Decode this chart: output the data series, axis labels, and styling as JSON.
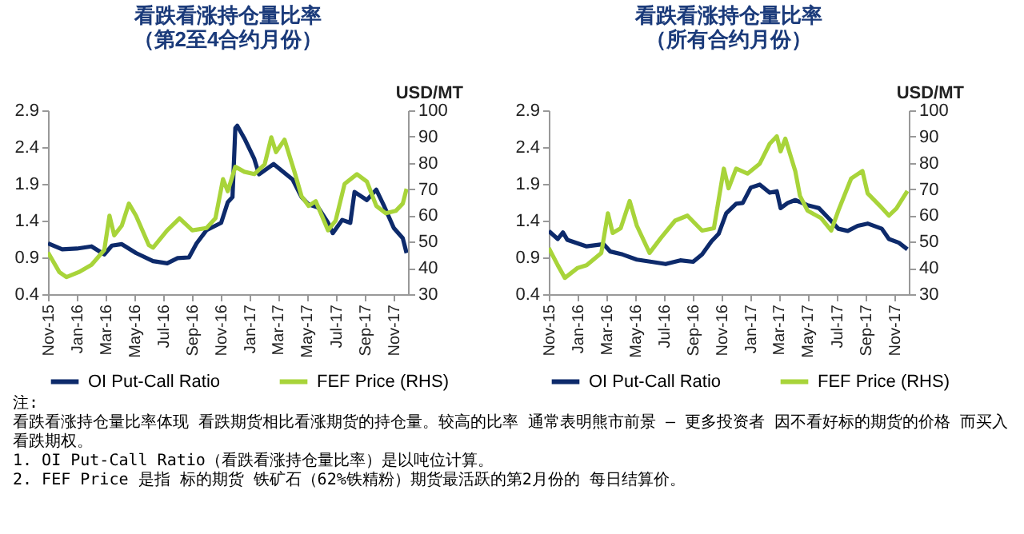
{
  "chart_data": [
    {
      "type": "line",
      "title": "看跌看涨持仓量比率（第2至4合约月份）",
      "y2label": "USD/MT",
      "legend": "bottom",
      "grid": false,
      "xlim": [
        "2015-11-01",
        "2017-12-01"
      ],
      "xticks": [
        {
          "value": "2015-11-01",
          "label": "Nov-15"
        },
        {
          "value": "2016-01-01",
          "label": "Jan-16"
        },
        {
          "value": "2016-03-01",
          "label": "Mar-16"
        },
        {
          "value": "2016-05-01",
          "label": "May-16"
        },
        {
          "value": "2016-07-01",
          "label": "Jul-16"
        },
        {
          "value": "2016-09-01",
          "label": "Sep-16"
        },
        {
          "value": "2016-11-01",
          "label": "Nov-16"
        },
        {
          "value": "2017-01-01",
          "label": "Jan-17"
        },
        {
          "value": "2017-03-01",
          "label": "Mar-17"
        },
        {
          "value": "2017-05-01",
          "label": "May-17"
        },
        {
          "value": "2017-07-01",
          "label": "Jul-17"
        },
        {
          "value": "2017-09-01",
          "label": "Sep-17"
        },
        {
          "value": "2017-11-01",
          "label": "Nov-17"
        }
      ],
      "ylim": [
        0.4,
        2.9
      ],
      "yticks": [
        0.4,
        0.9,
        1.4,
        1.9,
        2.4,
        2.9
      ],
      "y2lim": [
        30,
        100
      ],
      "y2ticks": [
        30,
        40,
        50,
        60,
        70,
        80,
        90,
        100
      ],
      "series": [
        {
          "name": "OI Put-Call Ratio",
          "color": "#0d2a6b",
          "x": [
            "2015-11-01",
            "2015-12-01",
            "2016-01-01",
            "2016-02-01",
            "2016-02-28",
            "2016-03-15",
            "2016-04-05",
            "2016-05-05",
            "2016-06-10",
            "2016-07-10",
            "2016-08-01",
            "2016-08-25",
            "2016-09-10",
            "2016-10-01",
            "2016-11-01",
            "2016-11-15",
            "2016-11-25",
            "2016-12-01",
            "2016-12-05",
            "2016-12-20",
            "2017-01-10",
            "2017-01-20",
            "2017-02-20",
            "2017-03-05",
            "2017-04-01",
            "2017-04-20",
            "2017-05-05",
            "2017-05-25",
            "2017-06-15",
            "2017-06-25",
            "2017-07-15",
            "2017-08-01",
            "2017-08-10",
            "2017-09-05",
            "2017-09-25",
            "2017-10-10",
            "2017-11-01",
            "2017-11-20",
            "2017-11-28"
          ],
          "values": [
            1.09,
            1.01,
            1.02,
            1.05,
            0.94,
            1.06,
            1.08,
            0.96,
            0.85,
            0.82,
            0.89,
            0.9,
            1.09,
            1.27,
            1.37,
            1.65,
            1.72,
            2.66,
            2.69,
            2.52,
            2.24,
            2.03,
            2.17,
            2.1,
            1.96,
            1.72,
            1.62,
            1.58,
            1.37,
            1.23,
            1.41,
            1.37,
            1.79,
            1.68,
            1.82,
            1.62,
            1.3,
            1.16,
            0.96
          ]
        },
        {
          "name": "FEF Price (RHS)",
          "color": "#a8d43a",
          "axis": "y2",
          "x": [
            "2015-11-01",
            "2015-11-25",
            "2015-12-10",
            "2016-01-05",
            "2016-02-01",
            "2016-02-28",
            "2016-03-10",
            "2016-03-20",
            "2016-04-05",
            "2016-04-20",
            "2016-05-05",
            "2016-06-01",
            "2016-06-10",
            "2016-07-10",
            "2016-08-05",
            "2016-09-01",
            "2016-10-01",
            "2016-10-20",
            "2016-11-05",
            "2016-11-15",
            "2016-12-01",
            "2016-12-20",
            "2017-01-10",
            "2017-02-01",
            "2017-02-15",
            "2017-02-25",
            "2017-03-15",
            "2017-04-05",
            "2017-04-20",
            "2017-05-05",
            "2017-05-20",
            "2017-06-15",
            "2017-07-01",
            "2017-07-20",
            "2017-08-15",
            "2017-09-05",
            "2017-09-25",
            "2017-10-15",
            "2017-11-05",
            "2017-11-20",
            "2017-11-28"
          ],
          "values": [
            45.9,
            38.4,
            36.5,
            38.4,
            41.2,
            46.8,
            59.9,
            52.4,
            56.1,
            64.5,
            59.9,
            48.7,
            47.7,
            54.3,
            58.9,
            54.3,
            55.2,
            58.9,
            73.8,
            69.2,
            78.5,
            76.6,
            75.7,
            79.4,
            89.7,
            84.1,
            88.8,
            76.6,
            67.3,
            63.6,
            65.4,
            54.3,
            58,
            72,
            75.7,
            72.9,
            63.6,
            60.8,
            61.7,
            64.5,
            70.1
          ]
        }
      ]
    },
    {
      "type": "line",
      "title": "看跌看涨持仓量比率（所有合约月份）",
      "y2label": "USD/MT",
      "legend": "bottom",
      "grid": false,
      "xlim": [
        "2015-11-01",
        "2017-12-01"
      ],
      "xticks": [
        {
          "value": "2015-11-01",
          "label": "Nov-15"
        },
        {
          "value": "2016-01-01",
          "label": "Jan-16"
        },
        {
          "value": "2016-03-01",
          "label": "Mar-16"
        },
        {
          "value": "2016-05-01",
          "label": "May-16"
        },
        {
          "value": "2016-07-01",
          "label": "Jul-16"
        },
        {
          "value": "2016-09-01",
          "label": "Sep-16"
        },
        {
          "value": "2016-11-01",
          "label": "Nov-16"
        },
        {
          "value": "2017-01-01",
          "label": "Jan-17"
        },
        {
          "value": "2017-03-01",
          "label": "Mar-17"
        },
        {
          "value": "2017-05-01",
          "label": "May-17"
        },
        {
          "value": "2017-07-01",
          "label": "Jul-17"
        },
        {
          "value": "2017-09-01",
          "label": "Sep-17"
        },
        {
          "value": "2017-11-01",
          "label": "Nov-17"
        }
      ],
      "ylim": [
        0.4,
        2.9
      ],
      "yticks": [
        0.4,
        0.9,
        1.4,
        1.9,
        2.4,
        2.9
      ],
      "y2lim": [
        30,
        100
      ],
      "y2ticks": [
        30,
        40,
        50,
        60,
        70,
        80,
        90,
        100
      ],
      "annotations": [
        "注:",
        "看跌看涨持仓量比率体现 看跌期货相比看涨期货的持仓量。较高的比率 通常表明熊市前景 – 更多投资者 因不看好标的期货的价格 而买入看跌期权。",
        "1.  OI Put-Call Ratio（看跌看涨持仓量比率）是以吨位计算。",
        "2.  FEF Price 是指 标的期货 铁矿石（62%铁精粉）期货最活跃的第2月份的 每日结算价。"
      ],
      "series": [
        {
          "name": "OI Put-Call Ratio",
          "color": "#0d2a6b",
          "x": [
            "2015-11-01",
            "2015-11-20",
            "2015-12-01",
            "2015-12-10",
            "2016-01-20",
            "2016-02-25",
            "2016-03-10",
            "2016-04-05",
            "2016-05-05",
            "2016-06-05",
            "2016-07-05",
            "2016-08-05",
            "2016-09-01",
            "2016-09-20",
            "2016-10-10",
            "2016-10-25",
            "2016-11-10",
            "2016-12-01",
            "2016-12-15",
            "2017-01-01",
            "2017-01-20",
            "2017-02-10",
            "2017-02-25",
            "2017-03-05",
            "2017-03-20",
            "2017-04-05",
            "2017-05-01",
            "2017-05-25",
            "2017-06-15",
            "2017-07-05",
            "2017-07-25",
            "2017-08-15",
            "2017-09-05",
            "2017-10-05",
            "2017-10-20",
            "2017-11-10",
            "2017-11-28"
          ],
          "values": [
            1.26,
            1.15,
            1.24,
            1.14,
            1.05,
            1.08,
            0.98,
            0.94,
            0.87,
            0.84,
            0.81,
            0.86,
            0.84,
            0.94,
            1.12,
            1.22,
            1.5,
            1.63,
            1.64,
            1.85,
            1.89,
            1.78,
            1.8,
            1.57,
            1.64,
            1.68,
            1.61,
            1.57,
            1.43,
            1.29,
            1.26,
            1.33,
            1.36,
            1.29,
            1.15,
            1.1,
            1.01
          ]
        },
        {
          "name": "FEF Price (RHS)",
          "color": "#a8d43a",
          "axis": "y2",
          "x": [
            "2015-11-01",
            "2015-11-20",
            "2015-12-05",
            "2016-01-01",
            "2016-01-20",
            "2016-02-20",
            "2016-03-05",
            "2016-03-15",
            "2016-04-01",
            "2016-04-20",
            "2016-05-05",
            "2016-06-01",
            "2016-06-25",
            "2016-07-25",
            "2016-08-20",
            "2016-09-20",
            "2016-10-15",
            "2016-11-05",
            "2016-11-15",
            "2016-12-01",
            "2016-12-25",
            "2017-01-20",
            "2017-02-10",
            "2017-02-25",
            "2017-03-05",
            "2017-03-15",
            "2017-04-05",
            "2017-04-15",
            "2017-05-01",
            "2017-05-30",
            "2017-06-20",
            "2017-07-05",
            "2017-08-01",
            "2017-08-25",
            "2017-09-05",
            "2017-10-01",
            "2017-10-20",
            "2017-11-05",
            "2017-11-28"
          ],
          "values": [
            47.6,
            41,
            36.2,
            40,
            41,
            45.7,
            60.8,
            53.3,
            55.1,
            65.5,
            56.1,
            45.7,
            51.4,
            58,
            59.9,
            54.2,
            55.1,
            77.8,
            70.3,
            77.8,
            75.9,
            79.7,
            87.3,
            90.1,
            84.4,
            89.2,
            76.9,
            67.4,
            61.8,
            58.9,
            54.2,
            61.8,
            74,
            76.9,
            68.4,
            63.6,
            59.9,
            62.7,
            69.3
          ]
        }
      ]
    }
  ]
}
